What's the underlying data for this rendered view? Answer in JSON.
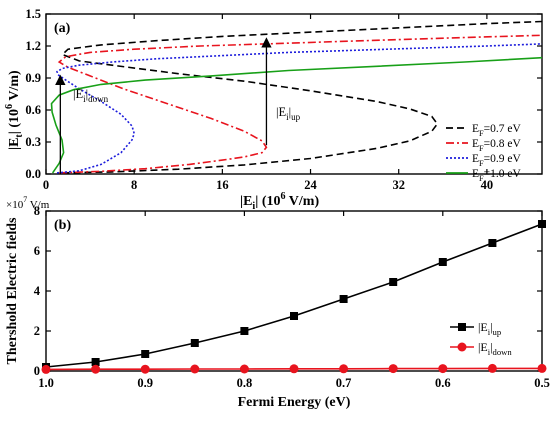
{
  "chart_data": [
    {
      "panel_label": "(a)",
      "type": "line",
      "xlabel_main": "|E",
      "xlabel_sub": "i",
      "xlabel_rest": "| (10",
      "xlabel_exp": "6",
      "xlabel_unit": " V/m)",
      "ylabel_main": "|E",
      "ylabel_sub": "t",
      "ylabel_rest": "| (10",
      "ylabel_exp": "6",
      "ylabel_unit": " V/m)",
      "xlim": [
        0,
        45
      ],
      "ylim": [
        0,
        1.5
      ],
      "xticks": [
        0,
        8,
        16,
        24,
        32,
        40
      ],
      "xtick_labels": [
        "0",
        "8",
        "16",
        "24",
        "32",
        "40"
      ],
      "yticks": [
        0,
        0.3,
        0.6,
        0.9,
        1.2,
        1.5
      ],
      "ytick_labels": [
        "0.0",
        "0.3",
        "0.6",
        "0.9",
        "1.2",
        "1.5"
      ],
      "legend_position": "right",
      "series": [
        {
          "name_main": "E",
          "name_sub": "F",
          "name_rest": "=0.7 eV",
          "color": "#000000",
          "dash": "7,4",
          "x": [
            1.5,
            6,
            12,
            18,
            24,
            30,
            33,
            35,
            35.5,
            35,
            33,
            30,
            24,
            18,
            12,
            6,
            3,
            1.5,
            2,
            5,
            10,
            16,
            22,
            28,
            34,
            40,
            45
          ],
          "y": [
            0.01,
            0.02,
            0.045,
            0.085,
            0.145,
            0.24,
            0.31,
            0.4,
            0.47,
            0.54,
            0.61,
            0.68,
            0.78,
            0.87,
            0.94,
            1.02,
            1.06,
            1.12,
            1.17,
            1.21,
            1.25,
            1.29,
            1.32,
            1.35,
            1.38,
            1.41,
            1.43
          ]
        },
        {
          "name_main": "E",
          "name_sub": "F",
          "name_rest": "=0.8 eV",
          "color": "#e8141e",
          "dash": "8,3,2,3",
          "x": [
            1.2,
            5,
            9,
            13,
            16,
            18,
            19.6,
            20,
            19.6,
            18,
            15,
            11,
            7,
            4,
            2,
            1.2,
            1.8,
            4,
            8,
            14,
            20,
            26,
            32,
            38,
            45
          ],
          "y": [
            0.01,
            0.025,
            0.05,
            0.09,
            0.13,
            0.16,
            0.2,
            0.25,
            0.31,
            0.4,
            0.52,
            0.66,
            0.8,
            0.92,
            1.0,
            1.05,
            1.1,
            1.14,
            1.17,
            1.2,
            1.22,
            1.24,
            1.26,
            1.28,
            1.3
          ]
        },
        {
          "name_main": "E",
          "name_sub": "F",
          "name_rest": "=0.9 eV",
          "color": "#1e1edc",
          "dash": "2,2",
          "x": [
            1.0,
            3,
            5,
            6.8,
            7.8,
            8,
            7.8,
            6.8,
            5,
            3,
            1.8,
            1.1,
            1.0,
            1.5,
            3,
            6,
            10,
            16,
            22,
            28,
            34,
            40,
            45
          ],
          "y": [
            0.01,
            0.03,
            0.09,
            0.2,
            0.32,
            0.38,
            0.45,
            0.56,
            0.68,
            0.8,
            0.88,
            0.93,
            0.96,
            0.99,
            1.02,
            1.05,
            1.08,
            1.11,
            1.14,
            1.16,
            1.18,
            1.2,
            1.22
          ]
        },
        {
          "name_main": "E",
          "name_sub": "F",
          "name_rest": "=1.0 eV",
          "color": "#18a018",
          "dash": "",
          "x": [
            0.6,
            1.2,
            1.6,
            1.45,
            0.9,
            0.55,
            0.5,
            1.2,
            2.5,
            5,
            9,
            15,
            22,
            30,
            38,
            45
          ],
          "y": [
            0.01,
            0.1,
            0.2,
            0.32,
            0.46,
            0.58,
            0.66,
            0.74,
            0.79,
            0.84,
            0.88,
            0.92,
            0.97,
            1.01,
            1.05,
            1.09
          ]
        }
      ],
      "annotations": [
        {
          "text_main": "|E",
          "text_sub": "i",
          "text_rest": "|",
          "text_sub2": "down"
        },
        {
          "text_main": "|E",
          "text_sub": "i",
          "text_rest": "|",
          "text_sub2": "up"
        }
      ],
      "arrows": [
        {
          "x": 1.3,
          "y_from": 0.0,
          "y_to": 0.93
        },
        {
          "x": 20.0,
          "y_from": 0.27,
          "y_to": 1.28
        }
      ]
    },
    {
      "panel_label": "(b)",
      "type": "line",
      "xlabel": "Fermi Energy (eV)",
      "ylabel": "Thershold Electric fields",
      "y_multiplier_base": "×10",
      "y_multiplier_exp": "7",
      "y_multiplier_unit": " V/m",
      "xlim": [
        1.0,
        0.5
      ],
      "ylim": [
        0,
        8
      ],
      "xticks": [
        1.0,
        0.9,
        0.8,
        0.7,
        0.6,
        0.5
      ],
      "xtick_labels": [
        "1.0",
        "0.9",
        "0.8",
        "0.7",
        "0.6",
        "0.5"
      ],
      "yticks": [
        0,
        2,
        4,
        6,
        8
      ],
      "ytick_labels": [
        "0",
        "2",
        "4",
        "6",
        "8"
      ],
      "legend_position": "bottom-right",
      "series": [
        {
          "name_main": "|E",
          "name_sub": "i",
          "name_rest": "|",
          "name_sub2": "up",
          "color": "#000000",
          "marker": "square",
          "x": [
            1.0,
            0.95,
            0.9,
            0.85,
            0.8,
            0.75,
            0.7,
            0.65,
            0.6,
            0.55,
            0.5
          ],
          "y": [
            0.2,
            0.45,
            0.85,
            1.4,
            2.0,
            2.75,
            3.6,
            4.45,
            5.45,
            6.4,
            7.35
          ]
        },
        {
          "name_main": "|E",
          "name_sub": "i",
          "name_rest": "|",
          "name_sub2": "down",
          "color": "#e8141e",
          "marker": "circle",
          "x": [
            1.0,
            0.95,
            0.9,
            0.85,
            0.8,
            0.75,
            0.7,
            0.65,
            0.6,
            0.55,
            0.5
          ],
          "y": [
            0.08,
            0.09,
            0.09,
            0.1,
            0.1,
            0.11,
            0.11,
            0.12,
            0.12,
            0.13,
            0.13
          ]
        }
      ]
    }
  ]
}
